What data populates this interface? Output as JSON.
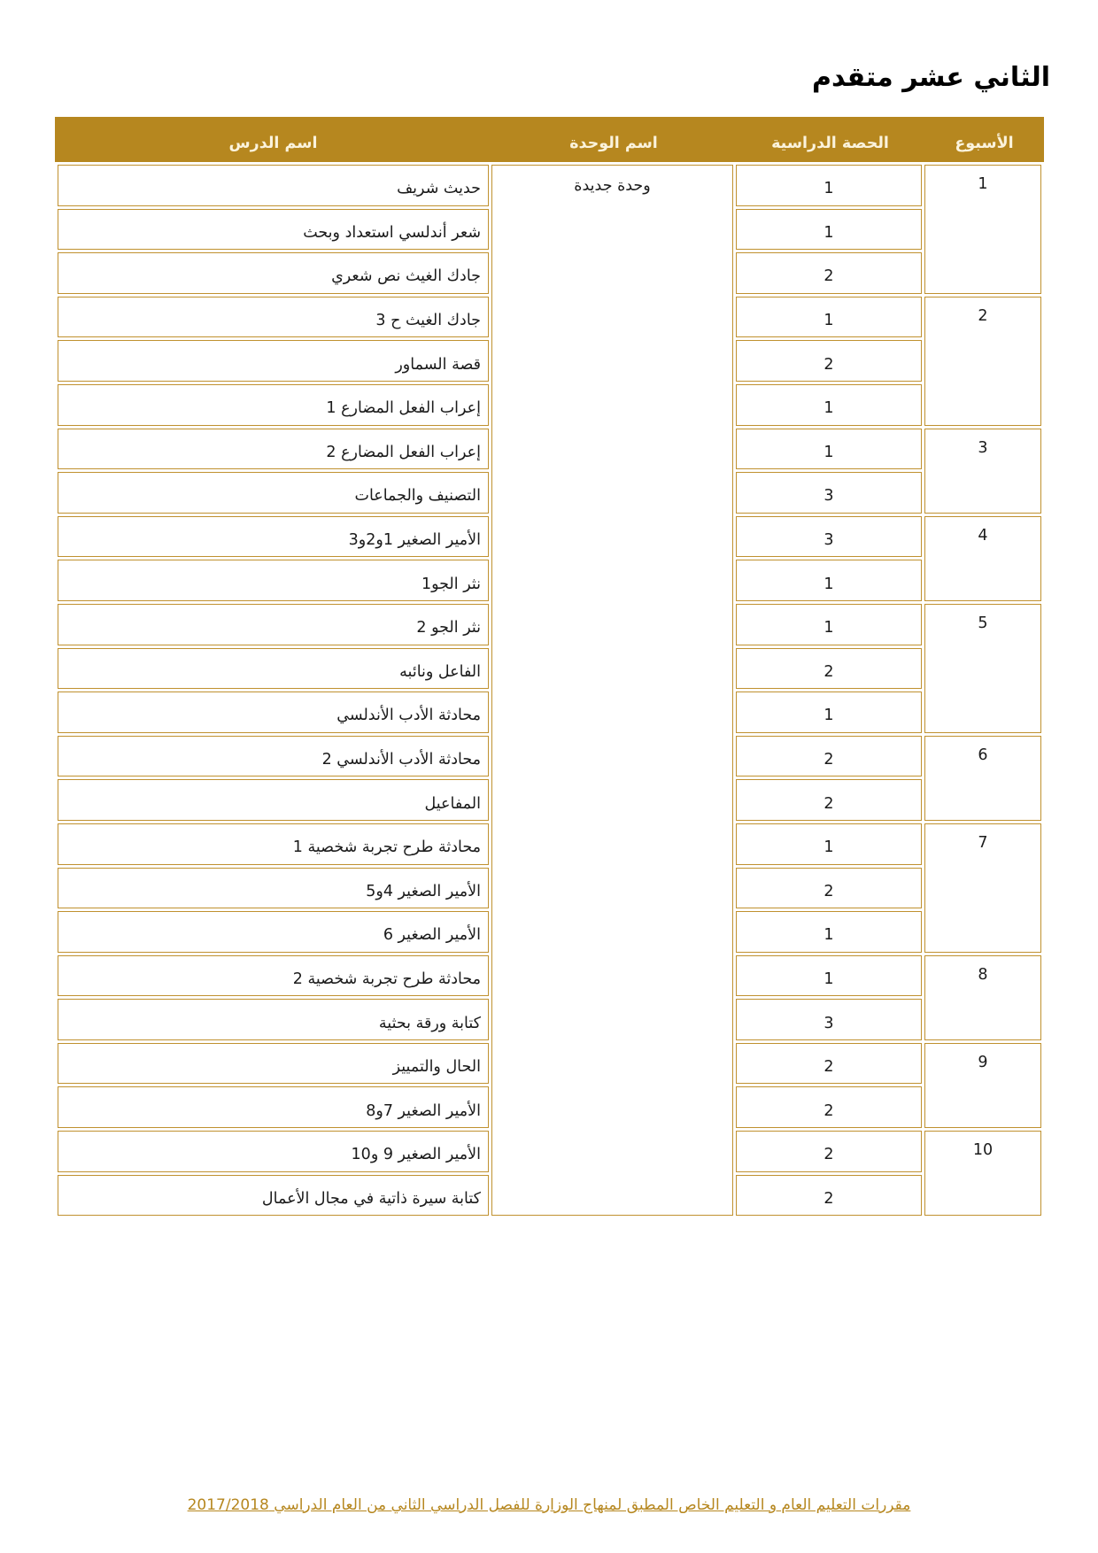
{
  "title": "الثاني عشر متقدم",
  "footer": {
    "text": "مقررات التعليم العام و التعليم الخاص المطبق لمنهاج الوزارة للفصل الدراسي الثاني من العام الدراسي 2017/2018"
  },
  "colors": {
    "header_bg": "#B6871F",
    "cell_border": "#C0912F",
    "header_text": "#FBF3DC",
    "body_text": "#1B1B1B",
    "footer_text": "#B6871F",
    "page_bg": "#FFFFFF"
  },
  "table": {
    "headers": {
      "week": "الأسبوع",
      "session": "الحصة الدراسية",
      "unit": "اسم الوحدة",
      "lesson": "اسم الدرس"
    },
    "unit": {
      "name": "وحدة جديدة",
      "row_span": 24
    },
    "rows": [
      {
        "lesson": "حديث شريف",
        "session": "1",
        "week": "1",
        "week_span": 3
      },
      {
        "lesson": "شعر أندلسي استعداد وبحث",
        "session": "1"
      },
      {
        "lesson": "جادك الغيث نص شعري",
        "session": "2"
      },
      {
        "lesson": "جادك الغيث ح 3",
        "session": "1",
        "week": "2",
        "week_span": 3
      },
      {
        "lesson": "قصة السماور",
        "session": "2"
      },
      {
        "lesson": "إعراب الفعل المضارع 1",
        "session": "1"
      },
      {
        "lesson": "إعراب الفعل المضارع 2",
        "session": "1",
        "week": "3",
        "week_span": 2
      },
      {
        "lesson": "التصنيف والجماعات",
        "session": "3"
      },
      {
        "lesson": "الأمير الصغير 1و2و3",
        "session": "3",
        "week": "4",
        "week_span": 2
      },
      {
        "lesson": "نثر الجو1",
        "session": "1"
      },
      {
        "lesson": "نثر الجو 2",
        "session": "1",
        "week": "5",
        "week_span": 3
      },
      {
        "lesson": "الفاعل ونائبه",
        "session": "2"
      },
      {
        "lesson": "محادثة الأدب الأندلسي",
        "session": "1"
      },
      {
        "lesson": "محادثة الأدب الأندلسي 2",
        "session": "2",
        "week": "6",
        "week_span": 2
      },
      {
        "lesson": "المفاعيل",
        "session": "2"
      },
      {
        "lesson": "محادثة طرح تجربة شخصية 1",
        "session": "1",
        "week": "7",
        "week_span": 3
      },
      {
        "lesson": "الأمير الصغير 4و5",
        "session": "2"
      },
      {
        "lesson": "الأمير الصغير 6",
        "session": "1"
      },
      {
        "lesson": "محادثة طرح تجربة شخصية 2",
        "session": "1",
        "week": "8",
        "week_span": 2
      },
      {
        "lesson": "كتابة ورقة بحثية",
        "session": "3"
      },
      {
        "lesson": "الحال والتمييز",
        "session": "2",
        "week": "9",
        "week_span": 2
      },
      {
        "lesson": "الأمير الصغير 7و8",
        "session": "2"
      },
      {
        "lesson": "الأمير الصغير 9 و10",
        "session": "2",
        "week": "10",
        "week_span": 2
      },
      {
        "lesson": "كتابة سيرة ذاتية في مجال الأعمال",
        "session": "2"
      }
    ]
  }
}
